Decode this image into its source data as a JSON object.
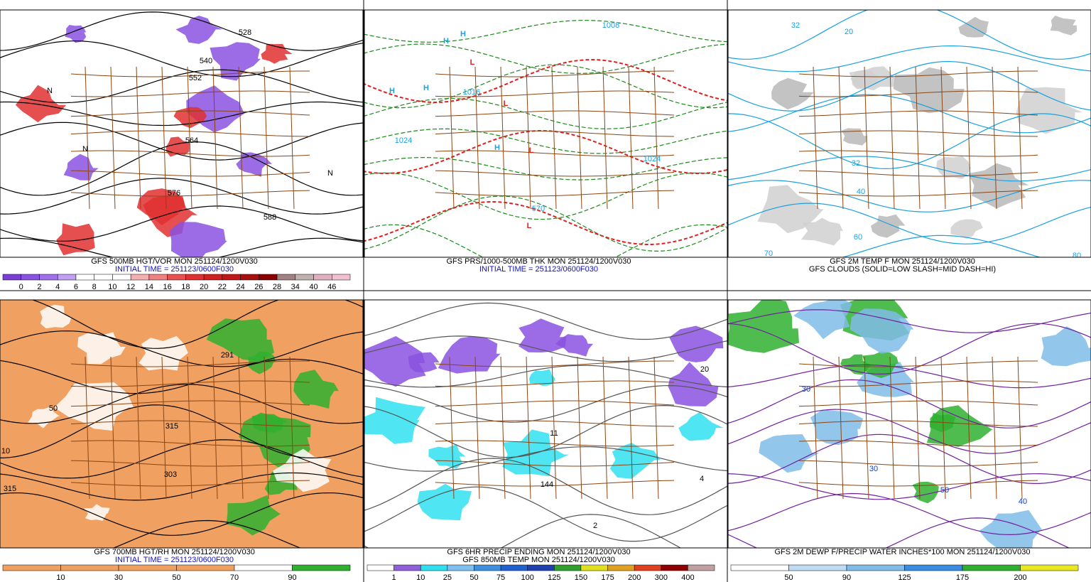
{
  "panels": [
    {
      "caption": [
        "GFS 500MB HGT/VOR MON 251124/1200V030",
        "INITIAL TIME = 251123/0600F030"
      ],
      "colorbar": {
        "labels": [
          0,
          2,
          4,
          6,
          8,
          10,
          12,
          14,
          16,
          18,
          20,
          22,
          24,
          26,
          28,
          34,
          40,
          46
        ],
        "colors": [
          "#7b3fd6",
          "#8a52e0",
          "#a070ea",
          "#c0a0f2",
          "#ffffff",
          "#ffffff",
          "#ffffff",
          "#f4b0b0",
          "#ee8080",
          "#e85050",
          "#e03030",
          "#d02020",
          "#c01818",
          "#a81010",
          "#8a0000",
          "#a08080",
          "#c0b0b0",
          "#e0b0c0",
          "#f0c0d0"
        ]
      },
      "annotations": [
        "528",
        "540",
        "552",
        "564",
        "576",
        "588",
        "N",
        "N",
        "N"
      ]
    },
    {
      "caption": [
        "GFS PRS/1000-500MB THK MON 251124/1200V030",
        "INITIAL TIME = 251123/0600F030"
      ],
      "annotations": [
        "H",
        "H",
        "H",
        "H",
        "H",
        "L",
        "L",
        "L",
        "L",
        "1024",
        "1016",
        "1008",
        "1024",
        "570"
      ]
    },
    {
      "caption": [
        "GFS 2M TEMP F MON 251124/1200V030",
        "GFS CLOUDS (SOLID=LOW SLASH=MID DASH=HI)"
      ],
      "annotations": [
        "32",
        "32",
        "20",
        "40",
        "60",
        "70",
        "80"
      ]
    },
    {
      "caption": [
        "GFS 700MB HGT/RH MON 251124/1200V030",
        "INITIAL TIME = 251123/0600F030"
      ],
      "colorbar": {
        "labels": [
          10,
          30,
          50,
          70,
          90
        ],
        "colors": [
          "#f0a060",
          "#f0a060",
          "#f0a060",
          "#f0a060",
          "#ffffff",
          "#30b030"
        ]
      },
      "annotations": [
        "291",
        "303",
        "315",
        "50",
        "10",
        "315"
      ]
    },
    {
      "caption": [
        "GFS 6HR PRECIP ENDING MON 251124/1200V030",
        "GFS 850MB TEMP MON 251124/1200V030"
      ],
      "colorbar": {
        "labels": [
          1,
          10,
          25,
          50,
          75,
          100,
          125,
          150,
          175,
          200,
          300,
          400
        ],
        "colors": [
          "#ffffff",
          "#9060d8",
          "#30e0f0",
          "#80c0f0",
          "#4090e0",
          "#2060d0",
          "#2040b0",
          "#30a030",
          "#e0e020",
          "#e0a020",
          "#e04020",
          "#900000",
          "#c0a0a0"
        ]
      },
      "annotations": [
        "144",
        "11",
        "20",
        "4",
        "2"
      ]
    },
    {
      "caption": [
        "GFS 2M DEWP F/PRECIP WATER INCHES*100 MON 251124/1200V030"
      ],
      "colorbar": {
        "labels": [
          50,
          90,
          125,
          175,
          200
        ],
        "colors": [
          "#ffffff",
          "#c0dcf4",
          "#80bce8",
          "#3a8ce0",
          "#30b030",
          "#e8e820"
        ]
      },
      "annotations": [
        "30",
        "30",
        "50",
        "40"
      ]
    }
  ]
}
